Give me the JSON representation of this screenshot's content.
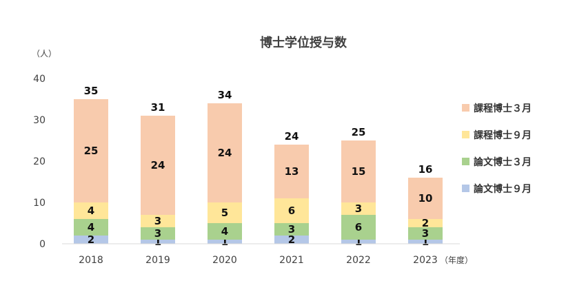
{
  "chart_data": {
    "type": "bar",
    "stacked": true,
    "title": "博士学位授与数",
    "y_unit_label": "（人）",
    "x_unit_label": "（年度）",
    "categories": [
      "2018",
      "2019",
      "2020",
      "2021",
      "2022",
      "2023"
    ],
    "series": [
      {
        "name": "論文博士９月",
        "color": "#b4c7e7",
        "values": [
          2,
          1,
          1,
          2,
          1,
          1
        ]
      },
      {
        "name": "論文博士３月",
        "color": "#a9d18e",
        "values": [
          4,
          3,
          4,
          3,
          6,
          3
        ]
      },
      {
        "name": "課程博士９月",
        "color": "#ffe699",
        "values": [
          4,
          3,
          5,
          6,
          3,
          2
        ]
      },
      {
        "name": "課程博士３月",
        "color": "#f8cbad",
        "values": [
          25,
          24,
          24,
          13,
          15,
          10
        ]
      }
    ],
    "totals": [
      35,
      31,
      34,
      24,
      25,
      16
    ],
    "ylim": [
      0,
      40
    ],
    "yticks": [
      0,
      10,
      20,
      30,
      40
    ],
    "grid": false,
    "legend_position": "right"
  }
}
